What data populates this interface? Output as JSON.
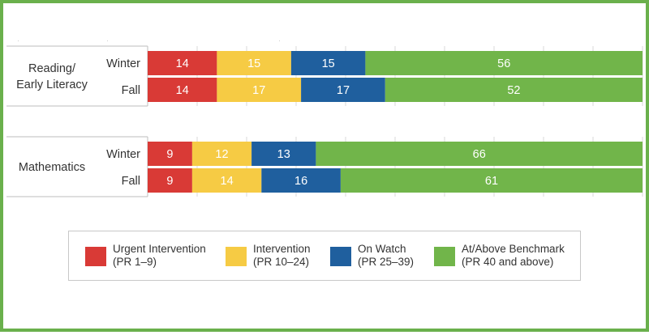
{
  "colors": {
    "urgent": "#d93a36",
    "intervention": "#f6cb44",
    "on_watch": "#1f5f9e",
    "at_above": "#71b54a",
    "frame": "#6ab04c"
  },
  "chart_data": {
    "type": "bar",
    "orientation": "horizontal",
    "stacked": true,
    "xlim": [
      0,
      100
    ],
    "grid": true,
    "legend_position": "bottom",
    "groups": [
      {
        "label": "Reading/\nEarly Literacy",
        "label_lines": [
          "Reading/",
          "Early Literacy"
        ],
        "bars": [
          {
            "season": "Winter",
            "values": [
              14,
              15,
              15,
              56
            ]
          },
          {
            "season": "Fall",
            "values": [
              14,
              17,
              17,
              52
            ]
          }
        ]
      },
      {
        "label": "Mathematics",
        "label_lines": [
          "Mathematics"
        ],
        "bars": [
          {
            "season": "Winter",
            "values": [
              9,
              12,
              13,
              66
            ]
          },
          {
            "season": "Fall",
            "values": [
              9,
              14,
              16,
              61
            ]
          }
        ]
      }
    ],
    "series": [
      {
        "name": "Urgent Intervention",
        "range": "(PR 1–9)",
        "color": "#d93a36"
      },
      {
        "name": "Intervention",
        "range": "(PR 10–24)",
        "color": "#f6cb44"
      },
      {
        "name": "On Watch",
        "range": "(PR 25–39)",
        "color": "#1f5f9e"
      },
      {
        "name": "At/Above Benchmark",
        "range": "(PR 40 and above)",
        "color": "#71b54a"
      }
    ]
  }
}
